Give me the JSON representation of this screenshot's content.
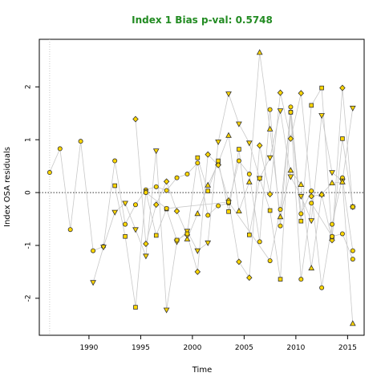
{
  "chart_data": {
    "type": "scatter",
    "title": "Index 1 Bias p-val: 0.5748",
    "xlabel": "Time",
    "ylabel": "Index OSA residuals",
    "xlim": [
      1985.2,
      2016.6
    ],
    "ylim": [
      -2.7,
      2.9
    ],
    "xticks": [
      1990,
      1995,
      2000,
      2005,
      2010,
      2015
    ],
    "yticks": [
      -2,
      -1,
      0,
      1,
      2
    ],
    "hline": 0,
    "vline": 1986.2,
    "marker_fill": "#FFD700",
    "marker_edge": "#333333",
    "line_color": "#c8c8c8",
    "series": [
      {
        "marker": "circle",
        "points": [
          [
            1986.2,
            0.38
          ],
          [
            1987.2,
            0.83
          ],
          [
            1988.2,
            -0.7
          ],
          [
            1989.2,
            0.97
          ],
          [
            1990.4,
            -1.1
          ],
          [
            1991.4,
            -1.02
          ],
          [
            1992.5,
            0.6
          ],
          [
            1993.5,
            -0.6
          ],
          [
            1994.5,
            -0.23
          ],
          [
            1995.5,
            0.05
          ],
          [
            1996.5,
            0.11
          ],
          [
            1997.5,
            0.04
          ],
          [
            1998.5,
            0.28
          ],
          [
            1999.5,
            0.35
          ],
          [
            2000.5,
            0.56
          ],
          [
            2001.5,
            -0.43
          ],
          [
            2002.5,
            -0.25
          ],
          [
            2003.5,
            -0.2
          ],
          [
            2004.5,
            0.6
          ],
          [
            2005.5,
            0.35
          ],
          [
            2006.5,
            -0.93
          ],
          [
            2007.5,
            1.57
          ],
          [
            2008.5,
            -0.63
          ],
          [
            2009.5,
            1.62
          ],
          [
            2010.5,
            -0.4
          ],
          [
            2011.5,
            0.03
          ],
          [
            2012.5,
            -1.8
          ],
          [
            2013.5,
            -0.6
          ],
          [
            2014.5,
            0.28
          ],
          [
            2015.5,
            -1.1
          ]
        ]
      },
      {
        "marker": "triangle-down",
        "points": [
          [
            1990.4,
            -1.7
          ],
          [
            1991.4,
            -1.03
          ],
          [
            1992.5,
            -0.37
          ],
          [
            1993.5,
            -0.2
          ],
          [
            1994.5,
            -0.7
          ],
          [
            1995.5,
            -1.2
          ],
          [
            1996.5,
            0.79
          ],
          [
            1997.5,
            -2.22
          ],
          [
            1998.5,
            -0.93
          ],
          [
            1999.5,
            -0.73
          ],
          [
            2000.5,
            -1.1
          ],
          [
            2001.5,
            -0.95
          ],
          [
            2002.5,
            0.96
          ],
          [
            2003.5,
            1.87
          ],
          [
            2004.5,
            1.3
          ],
          [
            2005.5,
            0.94
          ],
          [
            2006.5,
            0.27
          ],
          [
            2007.5,
            0.66
          ],
          [
            2008.5,
            1.55
          ],
          [
            2009.5,
            0.3
          ],
          [
            2010.5,
            -0.07
          ],
          [
            2011.5,
            -0.53
          ],
          [
            2012.5,
            1.46
          ],
          [
            2013.5,
            0.38
          ],
          [
            2014.5,
            0.22
          ],
          [
            2015.5,
            1.6
          ]
        ]
      },
      {
        "marker": "triangle-up",
        "points": [
          [
            1999.5,
            -0.88
          ],
          [
            2000.5,
            -0.4
          ],
          [
            2001.5,
            0.14
          ],
          [
            2002.5,
            0.56
          ],
          [
            2003.5,
            1.08
          ],
          [
            2004.5,
            -0.35
          ],
          [
            2005.5,
            0.2
          ],
          [
            2006.5,
            2.65
          ],
          [
            2007.5,
            1.2
          ],
          [
            2008.5,
            -0.46
          ],
          [
            2009.5,
            0.42
          ],
          [
            2010.5,
            0.15
          ],
          [
            2011.5,
            -1.43
          ],
          [
            2012.5,
            -0.03
          ],
          [
            2013.5,
            0.18
          ],
          [
            2014.5,
            0.2
          ],
          [
            2015.5,
            -2.48
          ]
        ]
      },
      {
        "marker": "diamond",
        "points": [
          [
            1994.5,
            1.39
          ],
          [
            1995.5,
            -0.97
          ],
          [
            1996.5,
            -0.23
          ],
          [
            1997.5,
            0.21
          ],
          [
            1998.5,
            -0.35
          ],
          [
            1999.5,
            -0.8
          ],
          [
            2000.5,
            -1.5
          ],
          [
            2001.5,
            0.72
          ],
          [
            2002.5,
            0.52
          ],
          [
            2003.5,
            -0.15
          ],
          [
            2004.5,
            -1.31
          ],
          [
            2005.5,
            -1.61
          ],
          [
            2006.5,
            0.89
          ],
          [
            2007.5,
            -0.03
          ],
          [
            2008.5,
            1.89
          ],
          [
            2009.5,
            1.02
          ],
          [
            2010.5,
            1.88
          ],
          [
            2011.5,
            -0.07
          ],
          [
            2012.5,
            -0.04
          ],
          [
            2013.5,
            -0.9
          ],
          [
            2014.5,
            1.98
          ],
          [
            2015.5,
            -0.27
          ]
        ]
      },
      {
        "marker": "square",
        "points": [
          [
            1992.5,
            0.13
          ],
          [
            1993.5,
            -0.83
          ],
          [
            1994.5,
            -2.17
          ],
          [
            1995.5,
            0.02
          ],
          [
            1996.5,
            -0.81
          ],
          [
            1997.5,
            -0.31
          ],
          [
            1998.5,
            -0.9
          ],
          [
            1999.5,
            -0.78
          ],
          [
            2000.5,
            0.66
          ],
          [
            2001.5,
            0.03
          ],
          [
            2002.5,
            0.6
          ],
          [
            2003.5,
            -0.36
          ],
          [
            2004.5,
            0.82
          ],
          [
            2005.5,
            -0.8
          ],
          [
            2006.5,
            0.27
          ],
          [
            2007.5,
            -0.34
          ],
          [
            2008.5,
            -1.64
          ],
          [
            2009.5,
            1.52
          ],
          [
            2010.5,
            -0.54
          ],
          [
            2011.5,
            1.65
          ],
          [
            2012.5,
            1.98
          ],
          [
            2013.5,
            -0.84
          ],
          [
            2014.5,
            1.02
          ],
          [
            2015.5,
            -0.27
          ]
        ]
      },
      {
        "marker": "circle",
        "points": [
          [
            1995.5,
            0.0
          ],
          [
            1997.5,
            -0.3
          ],
          [
            2003.5,
            -0.18
          ],
          [
            2007.5,
            -1.29
          ],
          [
            2008.5,
            -0.32
          ],
          [
            2009.5,
            1.52
          ],
          [
            2010.5,
            -1.64
          ],
          [
            2011.5,
            -0.2
          ],
          [
            2013.5,
            -0.83
          ],
          [
            2014.5,
            -0.78
          ],
          [
            2015.5,
            -1.26
          ]
        ]
      }
    ]
  }
}
